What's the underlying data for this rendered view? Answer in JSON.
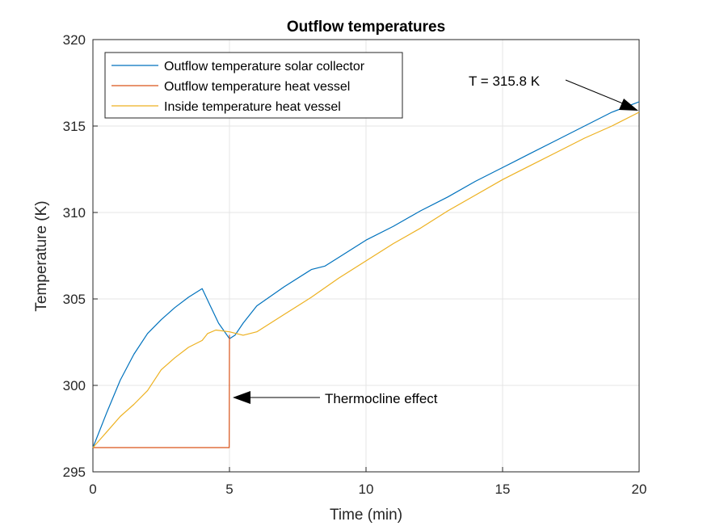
{
  "chart_data": {
    "type": "line",
    "title": "Outflow temperatures",
    "xlabel": "Time (min)",
    "ylabel": "Temperature (K)",
    "xlim": [
      0,
      20
    ],
    "ylim": [
      295,
      320
    ],
    "xticks": [
      "0",
      "5",
      "10",
      "15",
      "20"
    ],
    "yticks": [
      "295",
      "300",
      "305",
      "310",
      "315",
      "320"
    ],
    "grid": true,
    "legend_position": "top-left",
    "series": [
      {
        "name": "Outflow temperature solar collector",
        "color": "#0072BD",
        "x": [
          0,
          0.5,
          1,
          1.5,
          2,
          2.5,
          3,
          3.5,
          4,
          4.3,
          4.6,
          5,
          5.2,
          5.5,
          6,
          7,
          8,
          8.5,
          9,
          10,
          11,
          12,
          13,
          14,
          15,
          16,
          17,
          18,
          19,
          20
        ],
        "y": [
          296.4,
          298.4,
          300.3,
          301.8,
          303.0,
          303.8,
          304.5,
          305.1,
          305.6,
          304.6,
          303.6,
          302.7,
          302.9,
          303.6,
          304.6,
          305.7,
          306.7,
          306.9,
          307.4,
          308.4,
          309.2,
          310.1,
          310.9,
          311.8,
          312.6,
          313.4,
          314.2,
          315.0,
          315.8,
          316.4
        ]
      },
      {
        "name": "Outflow temperature heat vessel",
        "color": "#D95319",
        "x": [
          0,
          4.99,
          5.0,
          5.01
        ],
        "y": [
          296.4,
          296.4,
          302.9,
          302.9
        ]
      },
      {
        "name": "Inside temperature heat vessel",
        "color": "#EDB120",
        "x": [
          0,
          0.5,
          1,
          1.5,
          2,
          2.5,
          3,
          3.5,
          4,
          4.2,
          4.5,
          5,
          5.5,
          6,
          7,
          8,
          9,
          10,
          11,
          12,
          13,
          14,
          15,
          16,
          17,
          18,
          19,
          20
        ],
        "y": [
          296.4,
          297.3,
          298.2,
          298.9,
          299.7,
          300.9,
          301.6,
          302.2,
          302.6,
          303.0,
          303.2,
          303.1,
          302.9,
          303.1,
          304.1,
          305.1,
          306.2,
          307.2,
          308.2,
          309.1,
          310.1,
          311.0,
          311.9,
          312.7,
          313.5,
          314.3,
          315.0,
          315.8
        ]
      }
    ],
    "annotations": [
      {
        "text": "T = 315.8  K",
        "point": [
          20,
          315.8
        ]
      },
      {
        "text": "Thermocline effect",
        "point": [
          5,
          299.6
        ]
      }
    ]
  }
}
